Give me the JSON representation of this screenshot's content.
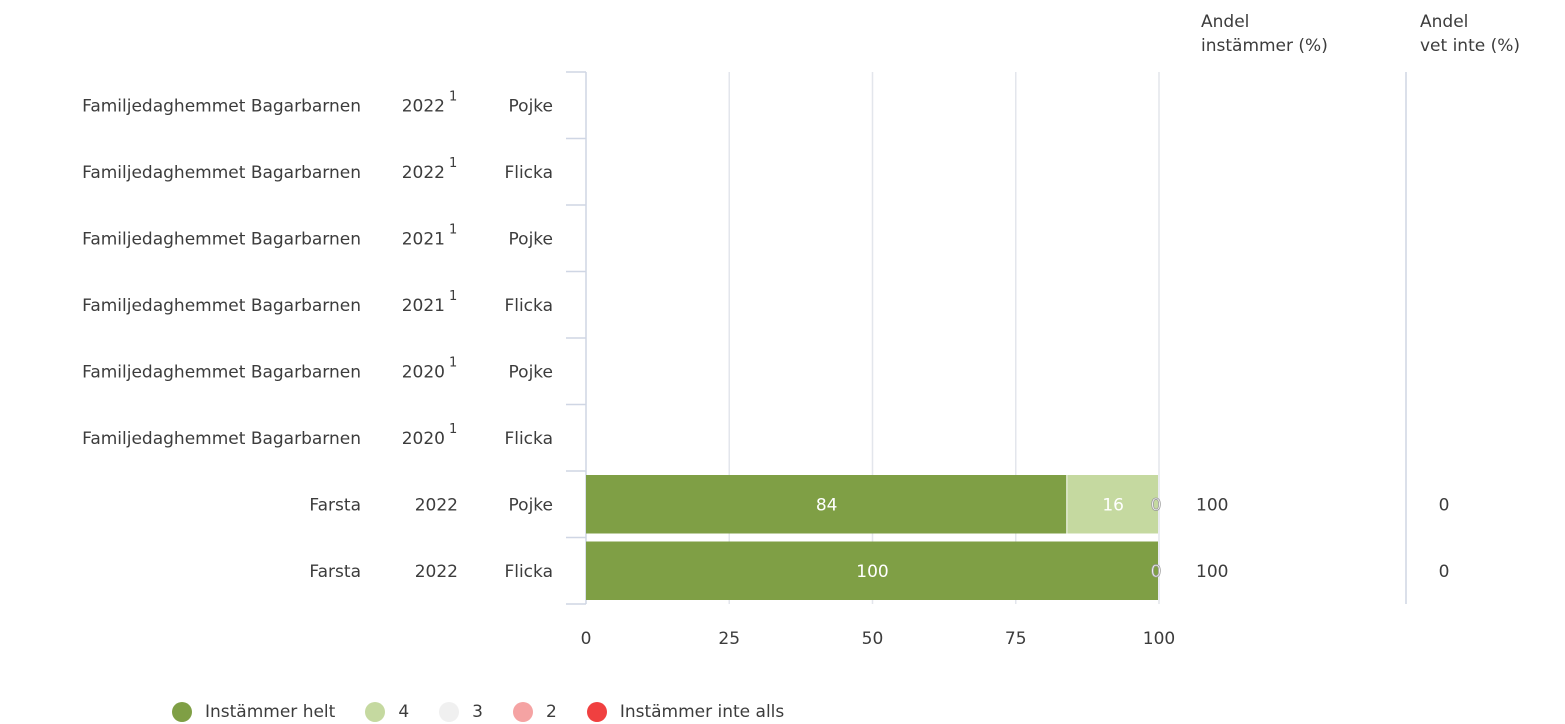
{
  "headers": {
    "share_agree": [
      "Andel",
      "instämmer (%)"
    ],
    "share_dont_know": [
      "Andel",
      "vet inte (%)"
    ]
  },
  "legend": [
    {
      "label": "Instämmer helt",
      "color": "#7f9f45"
    },
    {
      "label": "4",
      "color": "#c5d9a0"
    },
    {
      "label": "3",
      "color": "#f0f0f0"
    },
    {
      "label": "2",
      "color": "#f5a3a3"
    },
    {
      "label": "Instämmer inte alls",
      "color": "#f04040"
    }
  ],
  "chart_data": {
    "type": "bar",
    "orientation": "horizontal",
    "stacked": true,
    "xlim": [
      0,
      100
    ],
    "xticks": [
      "0",
      "25",
      "50",
      "75",
      "100"
    ],
    "grid": true,
    "legend_position": "bottom",
    "series": [
      {
        "name": "Instämmer helt",
        "color": "#7f9f45"
      },
      {
        "name": "4",
        "color": "#c5d9a0"
      },
      {
        "name": "3",
        "color": "#f0f0f0"
      },
      {
        "name": "2",
        "color": "#f5a3a3"
      },
      {
        "name": "Instämmer inte alls",
        "color": "#f04040"
      }
    ],
    "rows": [
      {
        "unit": "Familjedaghemmet Bagarbarnen",
        "year": "2022",
        "note": "1",
        "gender": "Pojke",
        "values": null,
        "share_agree": "",
        "share_dont_know": ""
      },
      {
        "unit": "Familjedaghemmet Bagarbarnen",
        "year": "2022",
        "note": "1",
        "gender": "Flicka",
        "values": null,
        "share_agree": "",
        "share_dont_know": ""
      },
      {
        "unit": "Familjedaghemmet Bagarbarnen",
        "year": "2021",
        "note": "1",
        "gender": "Pojke",
        "values": null,
        "share_agree": "",
        "share_dont_know": ""
      },
      {
        "unit": "Familjedaghemmet Bagarbarnen",
        "year": "2021",
        "note": "1",
        "gender": "Flicka",
        "values": null,
        "share_agree": "",
        "share_dont_know": ""
      },
      {
        "unit": "Familjedaghemmet Bagarbarnen",
        "year": "2020",
        "note": "1",
        "gender": "Pojke",
        "values": null,
        "share_agree": "",
        "share_dont_know": ""
      },
      {
        "unit": "Familjedaghemmet Bagarbarnen",
        "year": "2020",
        "note": "1",
        "gender": "Flicka",
        "values": null,
        "share_agree": "",
        "share_dont_know": ""
      },
      {
        "unit": "Farsta",
        "year": "2022",
        "note": "",
        "gender": "Pojke",
        "values": [
          84,
          16,
          0,
          0,
          0
        ],
        "share_agree": "100",
        "share_dont_know": "0"
      },
      {
        "unit": "Farsta",
        "year": "2022",
        "note": "",
        "gender": "Flicka",
        "values": [
          100,
          0,
          0,
          0,
          0
        ],
        "share_agree": "100",
        "share_dont_know": "0"
      }
    ]
  }
}
